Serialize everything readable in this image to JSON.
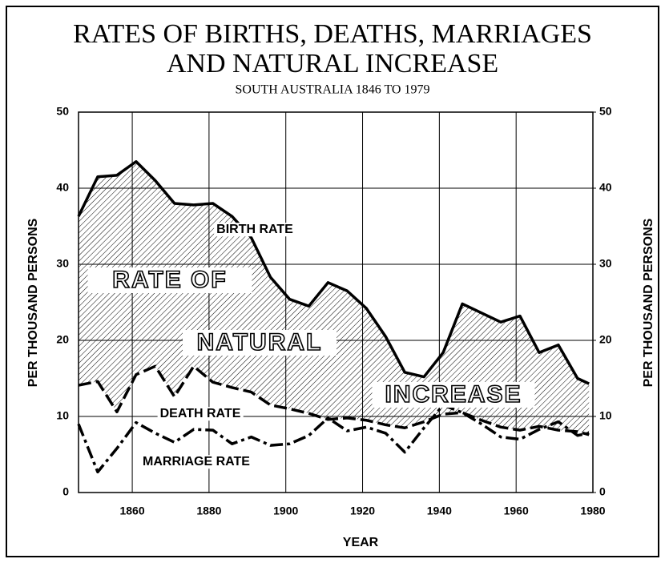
{
  "chart_data": {
    "type": "line",
    "title": [
      "RATES OF BIRTHS, DEATHS, MARRIAGES",
      "AND NATURAL INCREASE"
    ],
    "subtitle": "SOUTH AUSTRALIA 1846 TO 1979",
    "xlabel": "YEAR",
    "ylabel": "PER THOUSAND PERSONS",
    "y2label": "PER THOUSAND PERSONS",
    "x": [
      1846,
      1851,
      1856,
      1861,
      1866,
      1871,
      1876,
      1881,
      1886,
      1891,
      1896,
      1901,
      1906,
      1911,
      1916,
      1921,
      1926,
      1931,
      1936,
      1941,
      1946,
      1951,
      1956,
      1961,
      1966,
      1971,
      1976,
      1979
    ],
    "series": [
      {
        "name": "BIRTH RATE",
        "color": "#000000",
        "values": [
          36.3,
          41.5,
          41.7,
          43.5,
          41,
          38,
          37.8,
          38,
          36.3,
          33.5,
          28.3,
          25.4,
          24.5,
          27.6,
          26.5,
          24.2,
          20.5,
          15.8,
          15.2,
          18.4,
          24.8,
          23.6,
          22.4,
          23.2,
          18.4,
          19.4,
          15.0,
          14.3
        ]
      },
      {
        "name": "DEATH RATE",
        "color": "#000000",
        "values": [
          14.1,
          14.6,
          10.6,
          15.5,
          16.6,
          12.6,
          16.6,
          14.5,
          13.8,
          13.2,
          11.5,
          11.0,
          10.4,
          9.6,
          9.8,
          9.5,
          8.9,
          8.5,
          9.3,
          10.3,
          10.5,
          9.5,
          8.6,
          8.2,
          8.7,
          8.2,
          8.0,
          7.6
        ]
      },
      {
        "name": "MARRIAGE RATE",
        "color": "#000000",
        "values": [
          9.0,
          2.7,
          5.8,
          9.2,
          7.8,
          6.6,
          8.3,
          8.2,
          6.4,
          7.3,
          6.2,
          6.4,
          7.5,
          9.8,
          8.1,
          8.6,
          7.8,
          5.3,
          8.5,
          11.5,
          10.5,
          9.0,
          7.3,
          7.0,
          8.3,
          9.3,
          7.5,
          7.8
        ]
      }
    ],
    "annotations": [
      "RATE OF",
      "NATURAL",
      "INCREASE"
    ],
    "xlim": [
      1846,
      1980
    ],
    "xticks": [
      1860,
      1880,
      1900,
      1920,
      1940,
      1960,
      1980
    ],
    "ylim": [
      0,
      50
    ],
    "yticks": [
      0,
      10,
      20,
      30,
      40,
      50
    ],
    "y2lim": [
      0,
      50
    ],
    "y2ticks": [
      0,
      10,
      20,
      30,
      40,
      50
    ],
    "grid": true
  }
}
